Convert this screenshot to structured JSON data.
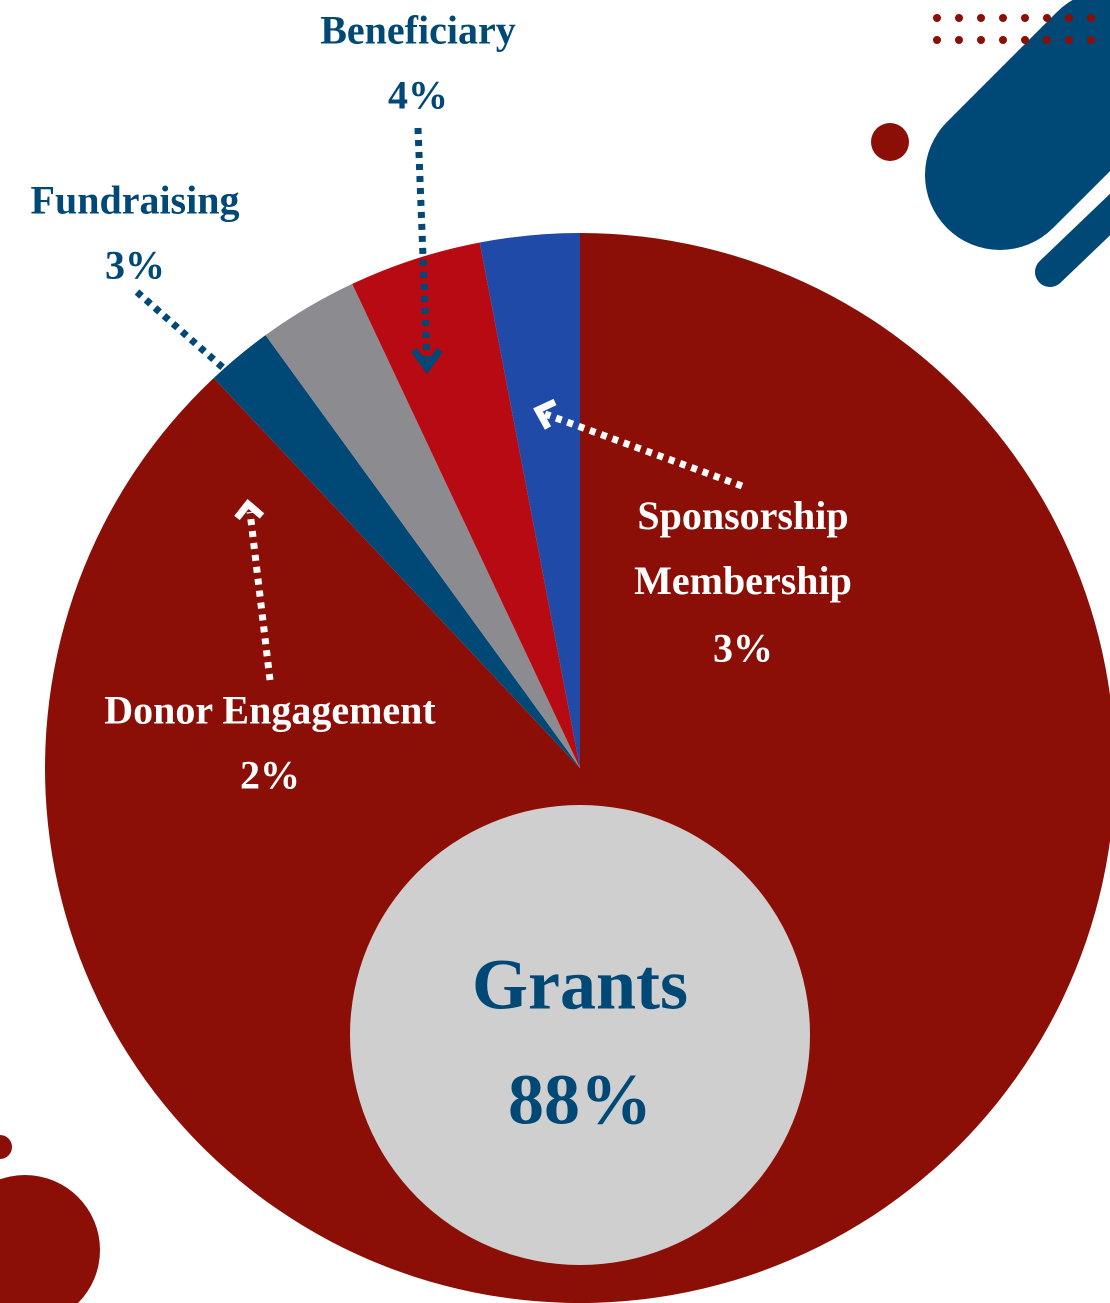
{
  "chart_data": {
    "type": "pie",
    "categories": [
      "Grants",
      "Donor Engagement",
      "Fundraising",
      "Beneficiary",
      "Sponsorship Membership"
    ],
    "values": [
      88,
      2,
      3,
      4,
      3
    ],
    "value_labels": [
      "88%",
      "2%",
      "3%",
      "4%",
      "3%"
    ],
    "colors": [
      "#8b0f07",
      "#004876",
      "#8c8c90",
      "#b70a12",
      "#1f4aa8"
    ]
  }
}
